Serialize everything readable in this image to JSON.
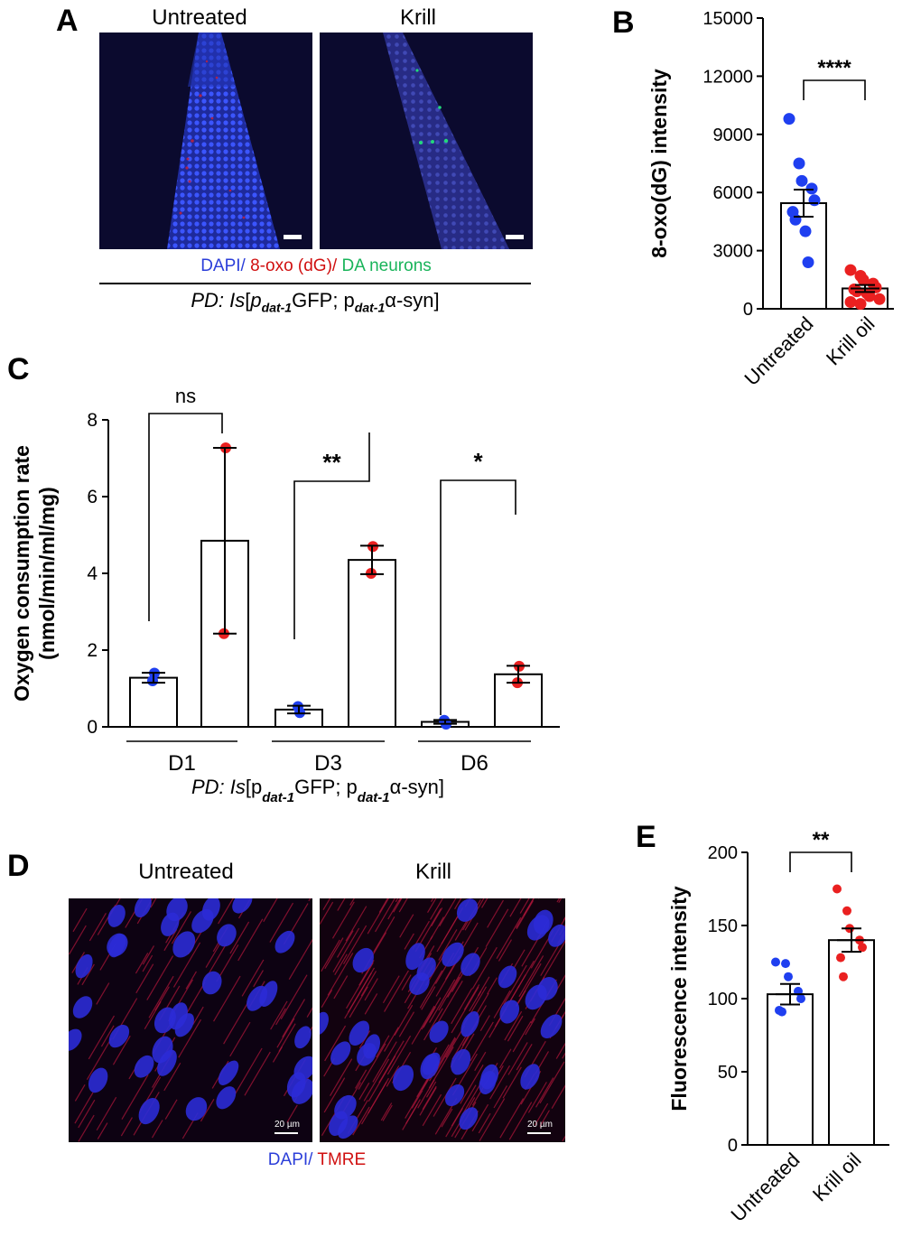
{
  "panel_a": {
    "letter": "A",
    "images": [
      {
        "title": "Untreated",
        "scalebar": ""
      },
      {
        "title": "Krill",
        "scalebar": ""
      }
    ],
    "legend": {
      "dapi": "DAPI/",
      "oxo": " 8-oxo (dG)/",
      "da": " DA neurons"
    },
    "colors": {
      "dapi": "#2b3ed9",
      "oxo": "#d01010",
      "da": "#19b45a"
    },
    "genotype": {
      "pre": "PD: ",
      "is": "Is",
      "open": "[p",
      "sub1": "dat-1",
      "mid": "GFP; p",
      "sub2": "dat-1",
      "alpha": "α-syn]"
    }
  },
  "panel_d": {
    "letter": "D",
    "images": [
      {
        "title": "Untreated",
        "scalebar": "20 µm"
      },
      {
        "title": "Krill",
        "scalebar": "20 µm"
      }
    ],
    "legend": {
      "dapi": "DAPI/",
      "tmre": " TMRE"
    }
  },
  "chart_data": [
    {
      "panel": "B",
      "type": "bar",
      "ylabel": "8-oxo(dG) intensity",
      "ylim": [
        0,
        15000
      ],
      "yticks": [
        0,
        3000,
        6000,
        9000,
        12000,
        15000
      ],
      "categories": [
        "Untreated",
        "Krill oil"
      ],
      "means": [
        5450,
        1050
      ],
      "sem": [
        700,
        180
      ],
      "points": [
        [
          9800,
          7500,
          6600,
          6200,
          5600,
          5000,
          4600,
          4000,
          2400
        ],
        [
          2000,
          1700,
          1500,
          1300,
          1100,
          1000,
          900,
          800,
          650,
          500,
          350,
          250
        ]
      ],
      "colors": [
        "#1f3ff0",
        "#ea2020"
      ],
      "significance": "****"
    },
    {
      "panel": "C",
      "type": "bar",
      "ylabel_lines": [
        "Oxygen consumption rate",
        "(nmol/min/ml/mg)"
      ],
      "ylim": [
        0,
        8
      ],
      "yticks": [
        0,
        2,
        4,
        6,
        8
      ],
      "groups": [
        "D1",
        "D3",
        "D6"
      ],
      "series": [
        {
          "values": [
            1.28,
            0.45,
            0.13
          ],
          "errors": [
            0.13,
            0.1,
            0.05
          ],
          "points": [
            [
              1.4,
              1.2
            ],
            [
              0.37,
              0.53
            ],
            [
              0.07,
              0.17
            ]
          ],
          "color": "#1f3ff0"
        },
        {
          "values": [
            4.85,
            4.35,
            1.37
          ],
          "errors": [
            2.42,
            0.37,
            0.22
          ],
          "points": [
            [
              7.27,
              2.43
            ],
            [
              4.7,
              4.0
            ],
            [
              1.58,
              1.15
            ]
          ],
          "color": "#ea2020"
        }
      ],
      "significance": [
        "ns",
        "**",
        "*"
      ],
      "xlabel": {
        "pre": "PD: ",
        "is": "Is",
        "open": "[p",
        "sub1": "dat-1",
        "mid": "GFP; p",
        "sub2": "dat-1",
        "alpha": "α-syn]"
      }
    },
    {
      "panel": "E",
      "type": "bar",
      "ylabel": "Fluorescence intensity",
      "ylim": [
        0,
        200
      ],
      "yticks": [
        0,
        50,
        100,
        150,
        200
      ],
      "categories": [
        "Untreated",
        "Krill oil"
      ],
      "means": [
        103,
        140
      ],
      "sem": [
        7,
        8
      ],
      "points": [
        [
          125,
          124,
          115,
          105,
          100,
          92,
          91
        ],
        [
          175,
          160,
          148,
          140,
          135,
          128,
          115
        ]
      ],
      "colors": [
        "#1f3ff0",
        "#ea2020"
      ],
      "significance": "**"
    }
  ]
}
